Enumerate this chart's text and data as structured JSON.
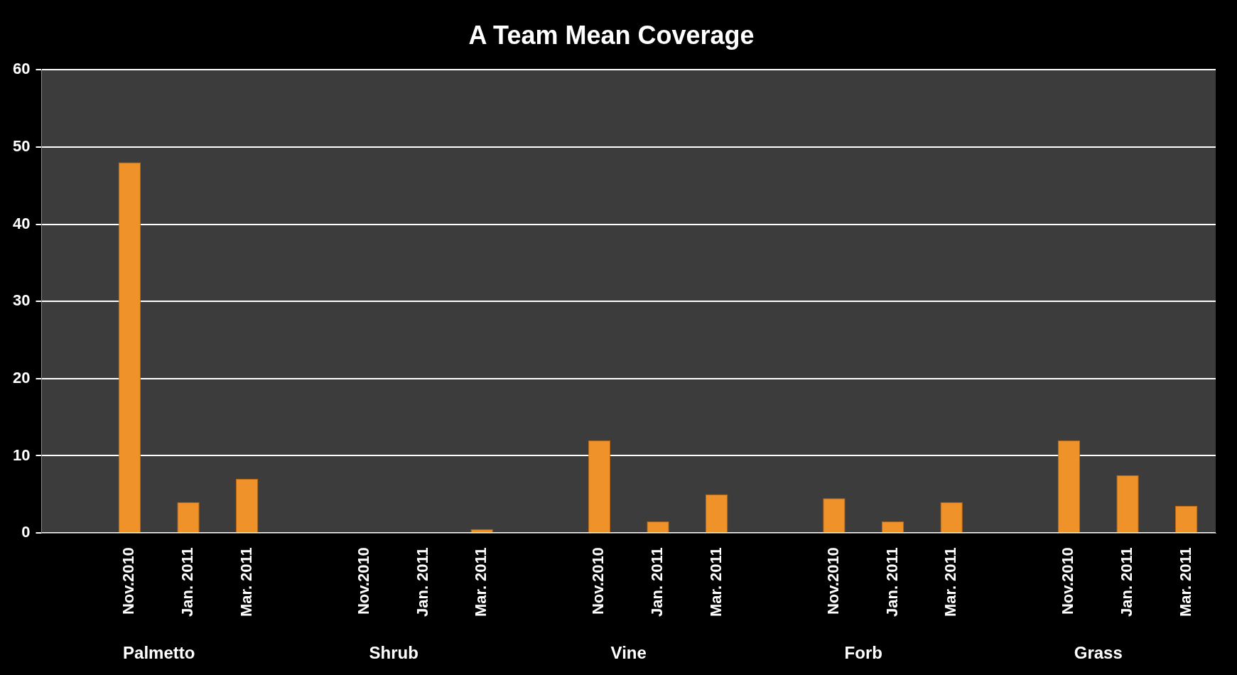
{
  "chart_data": {
    "type": "bar",
    "title": "A Team Mean Coverage",
    "categories": [
      null,
      "Nov.2010",
      "Jan. 2011",
      "Mar. 2011",
      null,
      "Nov.2010",
      "Jan. 2011",
      "Mar. 2011",
      null,
      "Nov.2010",
      "Jan. 2011",
      "Mar. 2011",
      null,
      "Nov.2010",
      "Jan. 2011",
      "Mar. 2011",
      null,
      "Nov.2010",
      "Jan. 2011",
      "Mar. 2011"
    ],
    "values": [
      null,
      48,
      4,
      7,
      null,
      0,
      0,
      0.5,
      null,
      12,
      1.5,
      5,
      null,
      4.5,
      1.5,
      4,
      null,
      12,
      7.5,
      3.5
    ],
    "color": "#f0922a",
    "annotations": [
      "Palmetto",
      "Shrub",
      "Vine",
      "Forb",
      "Grass"
    ],
    "ylim": [
      0,
      60
    ],
    "yticks": [
      0,
      10,
      20,
      30,
      40,
      50,
      60
    ],
    "grid": "y"
  }
}
